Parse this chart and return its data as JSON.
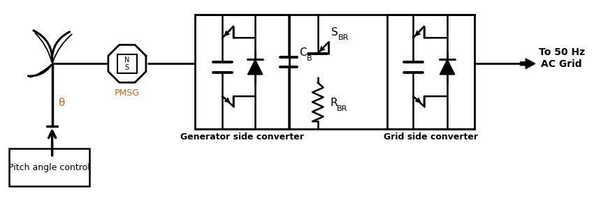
{
  "bg": "#ffffff",
  "black": "#000000",
  "orange": "#cc6600",
  "label_gen": "Generator side converter",
  "label_grid": "Grid side converter",
  "label_pmsg": "PMSG",
  "label_pitch": "Pitch angle control",
  "label_to_grid": "To 50 Hz\nAC Grid",
  "label_theta": "θ",
  "fig_w": 8.5,
  "fig_h": 2.84,
  "dpi": 100
}
